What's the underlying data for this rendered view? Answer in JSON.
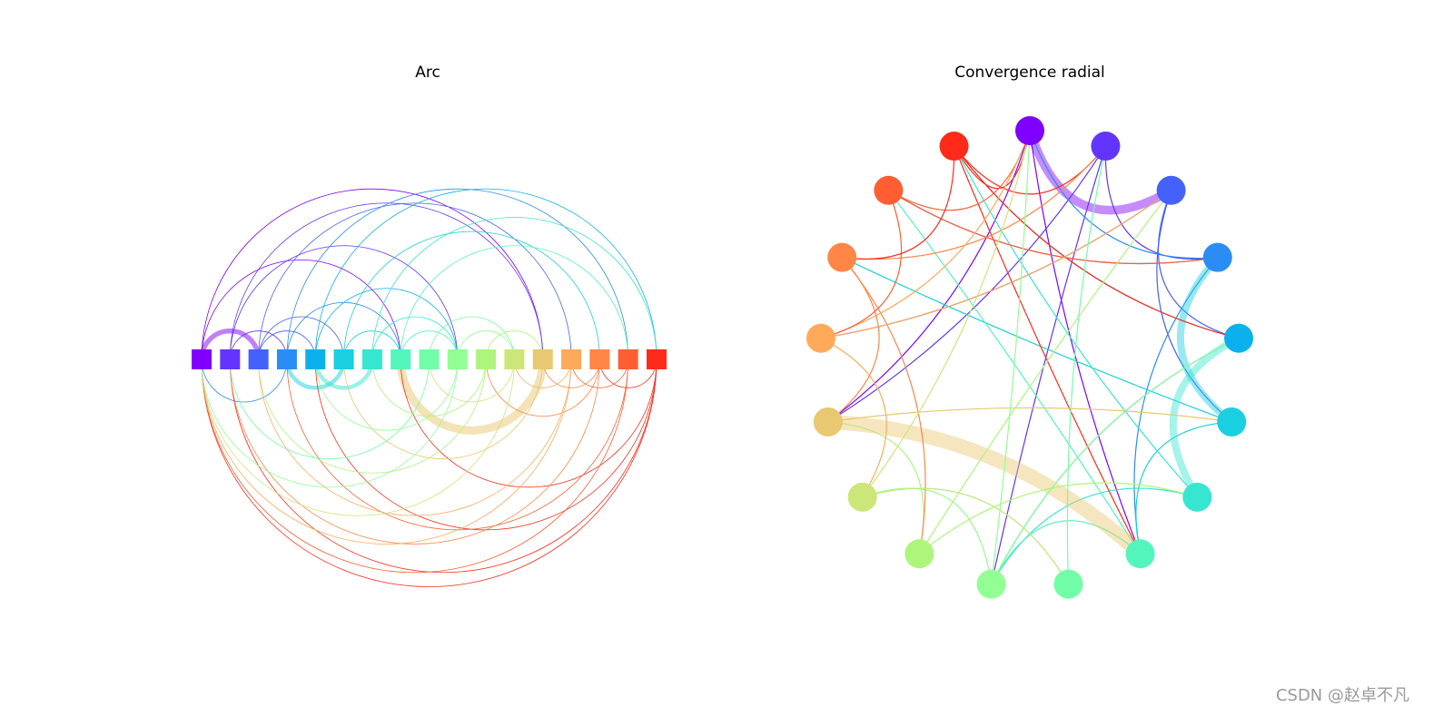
{
  "titles": {
    "arc": "Arc",
    "radial": "Convergence radial"
  },
  "watermark": "CSDN @赵卓不凡",
  "nodes": [
    {
      "color": "#8000ff"
    },
    {
      "color": "#6234fe"
    },
    {
      "color": "#4462fb"
    },
    {
      "color": "#2a8cf5"
    },
    {
      "color": "#0cb0ec"
    },
    {
      "color": "#1acfe0"
    },
    {
      "color": "#36e6d0"
    },
    {
      "color": "#54f5bd"
    },
    {
      "color": "#72fea8"
    },
    {
      "color": "#92fe93"
    },
    {
      "color": "#aef57c"
    },
    {
      "color": "#cce67a"
    },
    {
      "color": "#e8c870"
    },
    {
      "color": "#ffaa5a"
    },
    {
      "color": "#ff8646"
    },
    {
      "color": "#ff5e33"
    },
    {
      "color": "#ff2a1a"
    }
  ],
  "edges": [
    {
      "source": 0,
      "target": 2,
      "weight": 6
    },
    {
      "source": 0,
      "target": 7,
      "weight": 1
    },
    {
      "source": 0,
      "target": 12,
      "weight": 1
    },
    {
      "source": 1,
      "target": 9,
      "weight": 1
    },
    {
      "source": 1,
      "target": 3,
      "weight": 1
    },
    {
      "source": 1,
      "target": 12,
      "weight": 1
    },
    {
      "source": 2,
      "target": 4,
      "weight": 1
    },
    {
      "source": 2,
      "target": 5,
      "weight": 1
    },
    {
      "source": 2,
      "target": 13,
      "weight": 1
    },
    {
      "source": 3,
      "target": 7,
      "weight": 1
    },
    {
      "source": 3,
      "target": 15,
      "weight": 1
    },
    {
      "source": 4,
      "target": 16,
      "weight": 1
    },
    {
      "source": 4,
      "target": 9,
      "weight": 1
    },
    {
      "source": 5,
      "target": 7,
      "weight": 1
    },
    {
      "source": 5,
      "target": 14,
      "weight": 1
    },
    {
      "source": 6,
      "target": 9,
      "weight": 1
    },
    {
      "source": 6,
      "target": 16,
      "weight": 1
    },
    {
      "source": 7,
      "target": 9,
      "weight": 1
    },
    {
      "source": 7,
      "target": 15,
      "weight": 1
    },
    {
      "source": 8,
      "target": 11,
      "weight": 1
    },
    {
      "source": 9,
      "target": 11,
      "weight": 1
    },
    {
      "source": 10,
      "target": 12,
      "weight": 1
    },
    {
      "source": 5,
      "target": 3,
      "weight": 5
    },
    {
      "source": 6,
      "target": 4,
      "weight": 5
    },
    {
      "source": 12,
      "target": 7,
      "weight": 10
    },
    {
      "source": 3,
      "target": 0,
      "weight": 1
    },
    {
      "source": 16,
      "target": 0,
      "weight": 1
    },
    {
      "source": 16,
      "target": 1,
      "weight": 1
    },
    {
      "source": 16,
      "target": 4,
      "weight": 1
    },
    {
      "source": 16,
      "target": 7,
      "weight": 1
    },
    {
      "source": 15,
      "target": 0,
      "weight": 1
    },
    {
      "source": 15,
      "target": 3,
      "weight": 1
    },
    {
      "source": 14,
      "target": 1,
      "weight": 1
    },
    {
      "source": 14,
      "target": 10,
      "weight": 1
    },
    {
      "source": 13,
      "target": 0,
      "weight": 1
    },
    {
      "source": 13,
      "target": 2,
      "weight": 1
    },
    {
      "source": 12,
      "target": 5,
      "weight": 1
    },
    {
      "source": 11,
      "target": 0,
      "weight": 1
    },
    {
      "source": 10,
      "target": 2,
      "weight": 1
    },
    {
      "source": 9,
      "target": 0,
      "weight": 1
    },
    {
      "source": 8,
      "target": 1,
      "weight": 1
    },
    {
      "source": 9,
      "target": 4,
      "weight": 1
    },
    {
      "source": 10,
      "target": 6,
      "weight": 1
    },
    {
      "source": 11,
      "target": 8,
      "weight": 1
    },
    {
      "source": 13,
      "target": 11,
      "weight": 1
    },
    {
      "source": 14,
      "target": 12,
      "weight": 1
    },
    {
      "source": 15,
      "target": 13,
      "weight": 1
    },
    {
      "source": 16,
      "target": 14,
      "weight": 1
    }
  ]
}
